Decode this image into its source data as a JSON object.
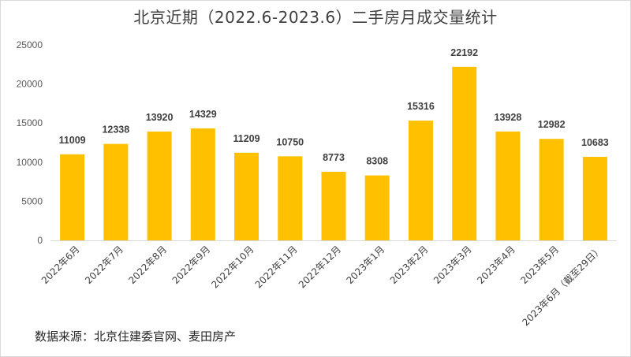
{
  "title": "北京近期（2022.6-2023.6）二手房月成交量统计",
  "source": "数据来源：北京住建委官网、麦田房产",
  "colors": {
    "bar": "#FFC000",
    "axis": "#d9d9d9",
    "text": "#404040"
  },
  "chart_data": {
    "type": "bar",
    "title": "北京近期（2022.6-2023.6）二手房月成交量统计",
    "xlabel": "",
    "ylabel": "",
    "categories": [
      "2022年6月",
      "2022年7月",
      "2022年8月",
      "2022年9月",
      "2022年10月",
      "2022年11月",
      "2022年12月",
      "2023年1月",
      "2023年2月",
      "2023年3月",
      "2023年4月",
      "2023年5月",
      "2023年6月（截至29日）"
    ],
    "values": [
      11009,
      12338,
      13920,
      14329,
      11209,
      10750,
      8773,
      8308,
      15316,
      22192,
      13928,
      12982,
      10683
    ],
    "ylim": [
      0,
      25000
    ],
    "yticks": [
      0,
      5000,
      10000,
      15000,
      20000,
      25000
    ],
    "grid": false,
    "data_labels": true,
    "legend": "none"
  }
}
